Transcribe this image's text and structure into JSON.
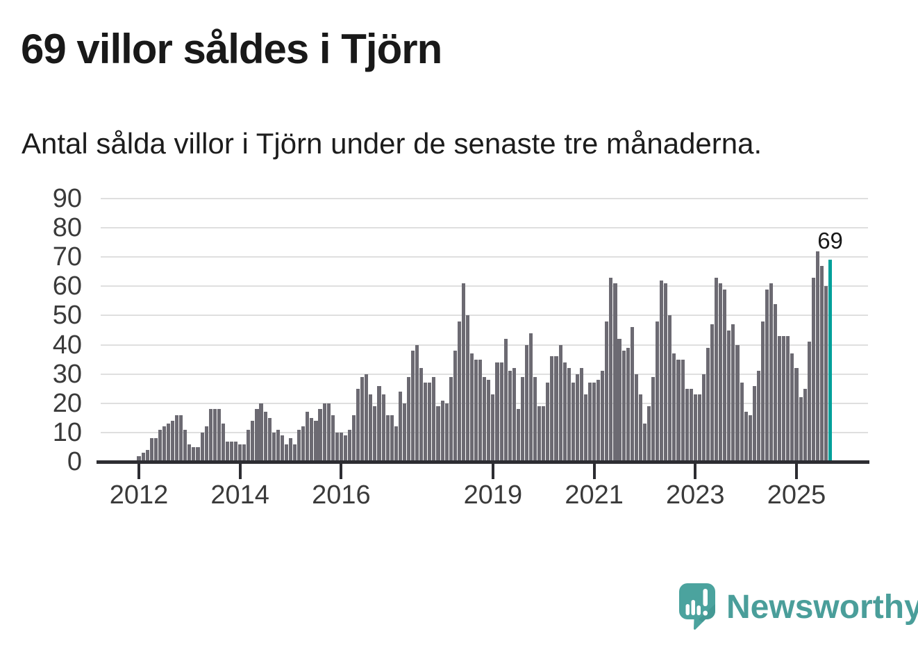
{
  "header": {
    "title": "69 villor såldes i Tjörn",
    "subtitle": "Antal sålda villor i Tjörn under de senaste tre månaderna."
  },
  "chart_data": {
    "type": "bar",
    "title": "69 villor såldes i Tjörn",
    "subtitle": "Antal sålda villor i Tjörn under de senaste tre månaderna.",
    "xlabel": "",
    "ylabel": "",
    "ylim": [
      0,
      90
    ],
    "grid": true,
    "y_ticks": [
      0,
      10,
      20,
      30,
      40,
      50,
      60,
      70,
      80,
      90
    ],
    "x_ticks": [
      {
        "label": "2012",
        "month_offset": 0
      },
      {
        "label": "2014",
        "month_offset": 24
      },
      {
        "label": "2016",
        "month_offset": 48
      },
      {
        "label": "2019",
        "month_offset": 84
      },
      {
        "label": "2021",
        "month_offset": 108
      },
      {
        "label": "2023",
        "month_offset": 132
      },
      {
        "label": "2025",
        "month_offset": 156
      }
    ],
    "start_month": "2012-01",
    "end_month": "2025-09",
    "values": [
      2,
      3,
      4,
      8,
      8,
      11,
      12,
      13,
      14,
      16,
      16,
      11,
      6,
      5,
      5,
      10,
      12,
      18,
      18,
      18,
      13,
      7,
      7,
      7,
      6,
      6,
      11,
      14,
      18,
      20,
      17,
      15,
      10,
      11,
      9,
      6,
      8,
      6,
      11,
      12,
      17,
      15,
      14,
      18,
      20,
      20,
      16,
      10,
      10,
      9,
      11,
      16,
      25,
      29,
      30,
      23,
      19,
      26,
      23,
      16,
      16,
      12,
      24,
      20,
      29,
      38,
      40,
      32,
      27,
      27,
      29,
      19,
      21,
      20,
      29,
      38,
      48,
      61,
      50,
      37,
      35,
      35,
      29,
      28,
      23,
      34,
      34,
      42,
      31,
      32,
      18,
      29,
      40,
      44,
      29,
      19,
      19,
      27,
      36,
      36,
      40,
      34,
      32,
      27,
      30,
      32,
      23,
      27,
      27,
      28,
      31,
      48,
      63,
      61,
      42,
      38,
      39,
      46,
      30,
      23,
      13,
      19,
      29,
      48,
      62,
      61,
      50,
      37,
      35,
      35,
      25,
      25,
      23,
      23,
      30,
      39,
      47,
      63,
      61,
      59,
      45,
      47,
      40,
      27,
      17,
      16,
      26,
      31,
      48,
      59,
      61,
      54,
      43,
      43,
      43,
      37,
      32,
      22,
      25,
      41,
      63,
      72,
      67,
      60,
      69
    ],
    "bar_color": "#6c6a72",
    "highlight": {
      "index": 164,
      "value": 69,
      "color": "#00a09a"
    },
    "annotation": {
      "text": "69"
    },
    "legend": null
  },
  "footer": {
    "brand": "Newsworthy",
    "logo_icon": "newsworthy-speech-bubble-bar-chart-icon",
    "brand_color": "#4a9e9a",
    "logo_color": "#4ba39e"
  }
}
